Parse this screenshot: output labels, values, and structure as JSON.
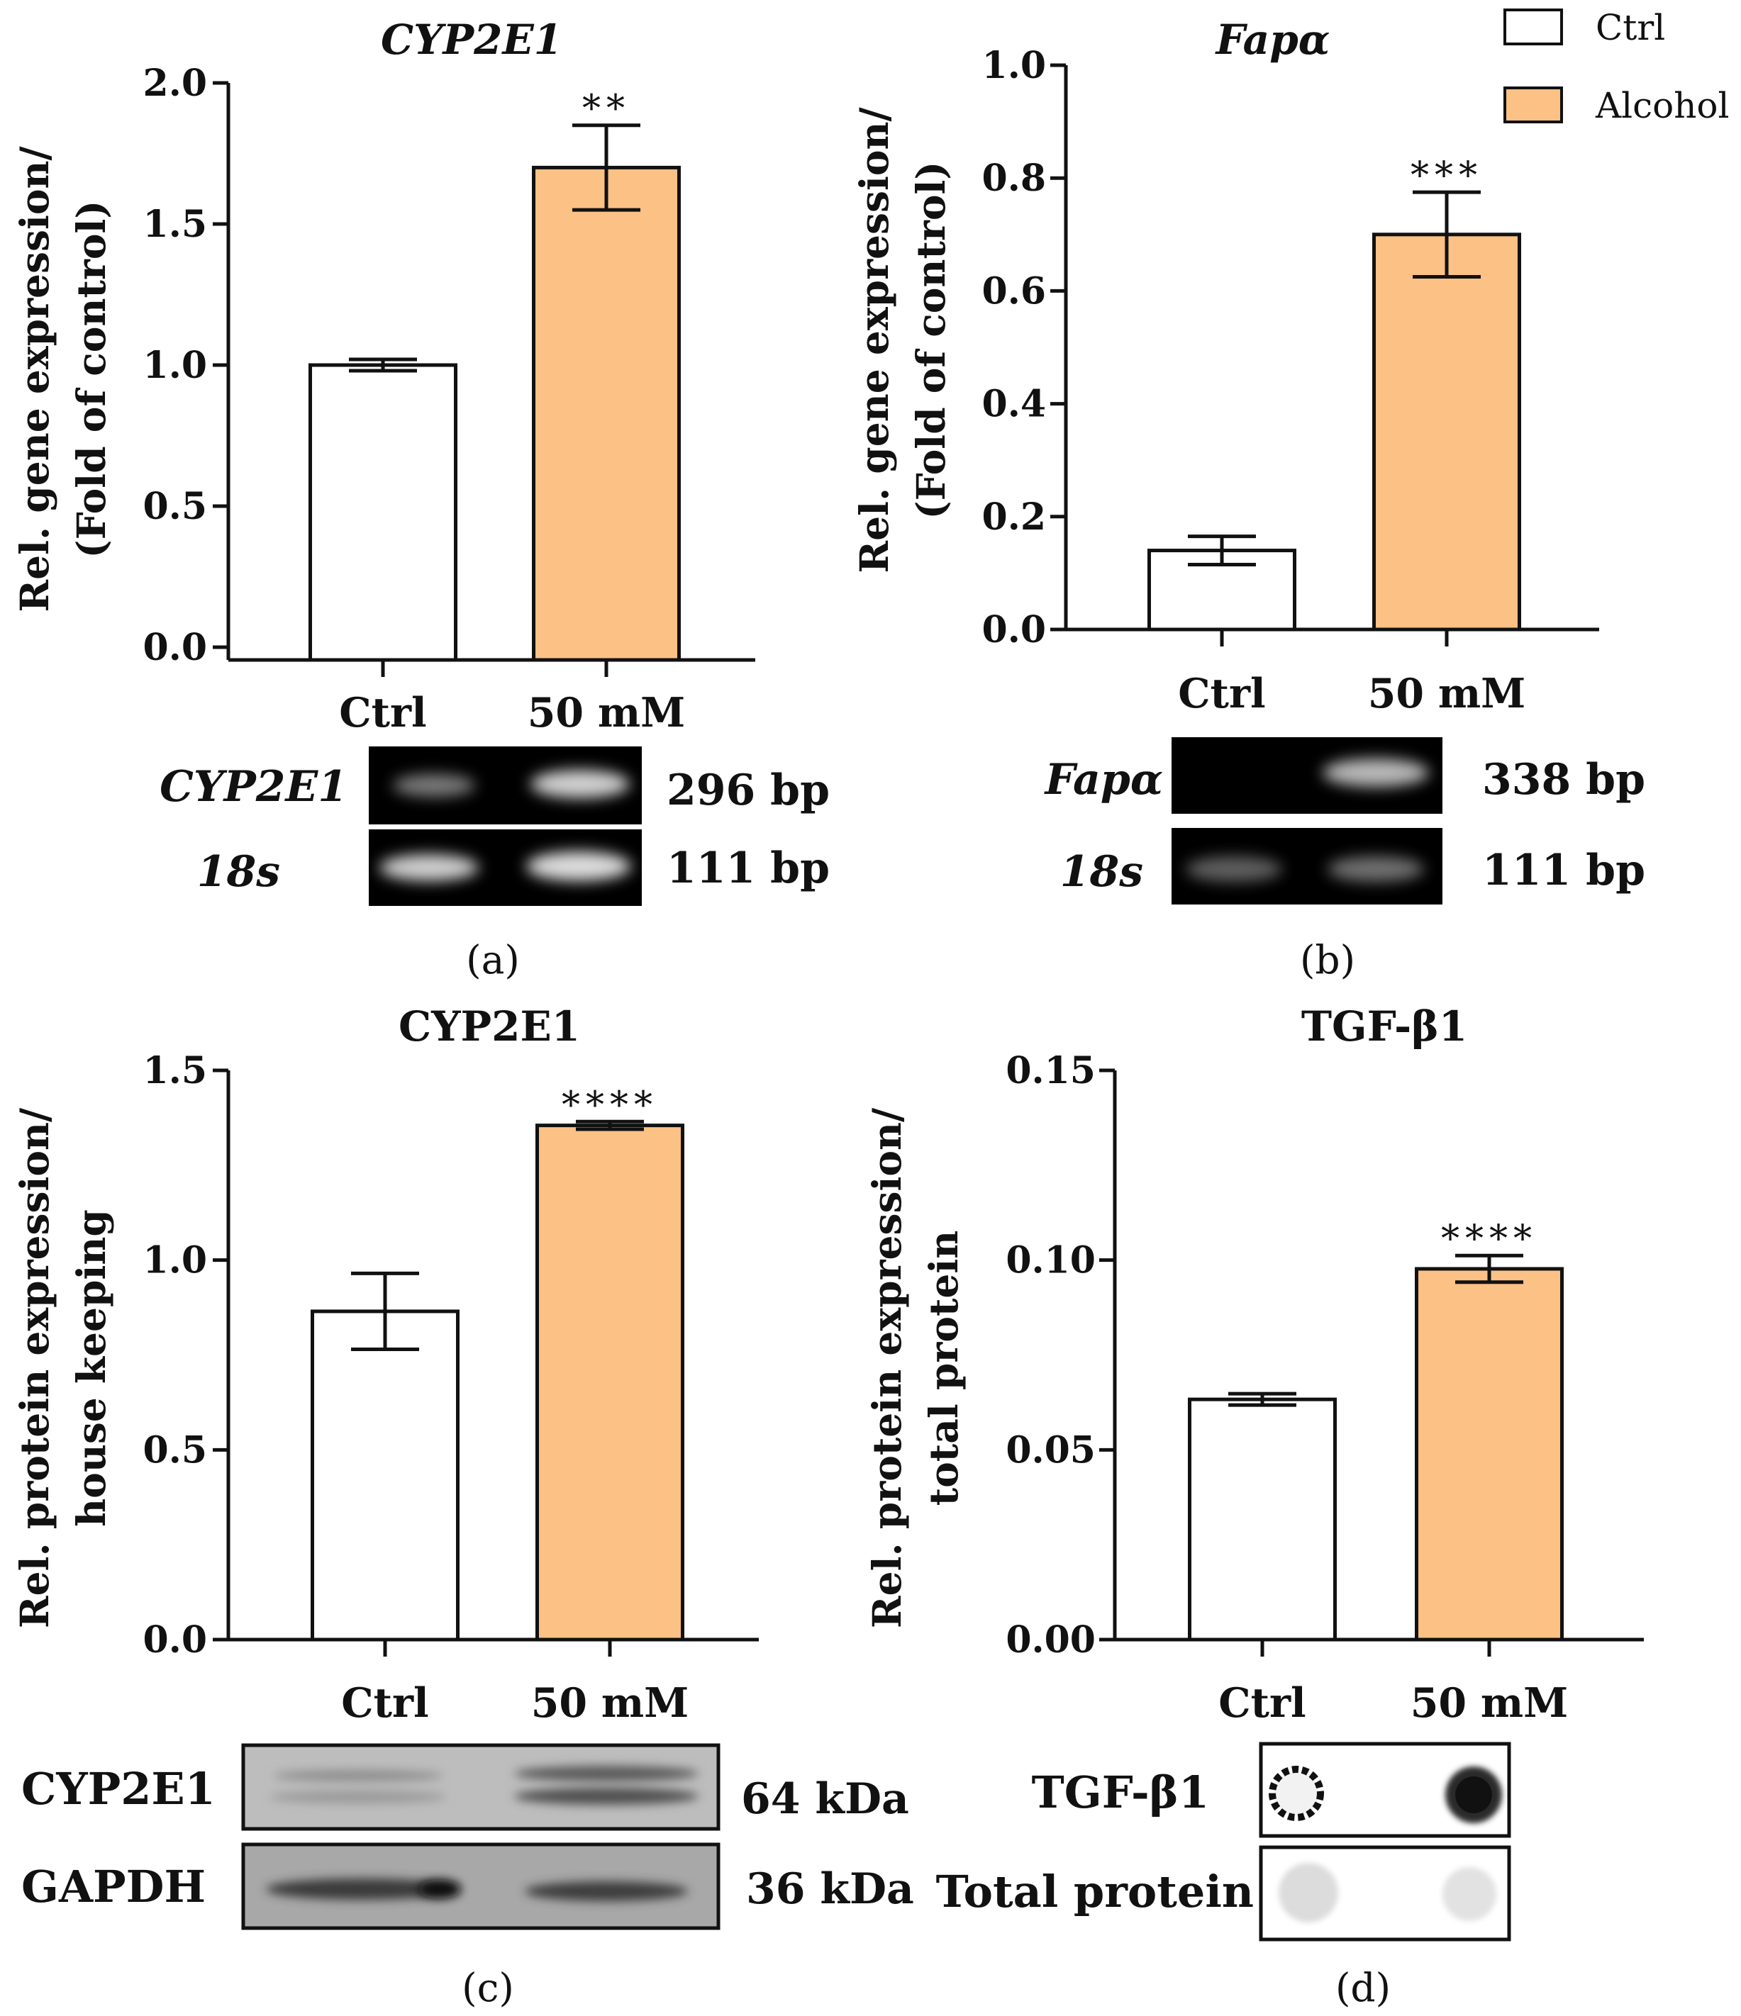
{
  "legend": {
    "items": [
      {
        "label": "Ctrl",
        "color": "#ffffff"
      },
      {
        "label": "Alcohol",
        "color": "#fbc185"
      }
    ]
  },
  "colors": {
    "ctrl": "#ffffff",
    "alcohol": "#fbc185",
    "stroke": "#111111"
  },
  "chart_data": [
    {
      "type": "bar",
      "title": "CYP2E1",
      "ylabel": "Rel. gene expression/ (Fold of control)",
      "categories": [
        "Ctrl",
        "50 mM"
      ],
      "values": [
        1.0,
        1.7
      ],
      "errors": [
        0.02,
        0.15
      ],
      "significance": [
        "",
        "**"
      ],
      "ylim": [
        0,
        2.0
      ],
      "yticks": [
        "0.0",
        "0.5",
        "1.0",
        "1.5",
        "2.0"
      ],
      "panel_label": "(a)",
      "blot": {
        "rows": [
          {
            "name": "CYP2E1",
            "size": "296 bp"
          },
          {
            "name": "18s",
            "size": "111 bp"
          }
        ]
      }
    },
    {
      "type": "bar",
      "title": "Fapα",
      "ylabel": "Rel. gene expression/ (Fold of control)",
      "categories": [
        "Ctrl",
        "50 mM"
      ],
      "values": [
        0.14,
        0.7
      ],
      "errors": [
        0.025,
        0.075
      ],
      "significance": [
        "",
        "***"
      ],
      "ylim": [
        0,
        1.0
      ],
      "yticks": [
        "0.0",
        "0.2",
        "0.4",
        "0.6",
        "0.8",
        "1.0"
      ],
      "panel_label": "(b)",
      "blot": {
        "rows": [
          {
            "name": "Fapα",
            "size": "338 bp"
          },
          {
            "name": "18s",
            "size": "111 bp"
          }
        ]
      }
    },
    {
      "type": "bar",
      "title": "CYP2E1",
      "ylabel": "Rel. protein expression/ house keeping",
      "categories": [
        "Ctrl",
        "50 mM"
      ],
      "values": [
        0.865,
        1.355
      ],
      "errors": [
        0.1,
        0.01
      ],
      "significance": [
        "",
        "****"
      ],
      "ylim": [
        0,
        1.5
      ],
      "yticks": [
        "0.0",
        "0.5",
        "1.0",
        "1.5"
      ],
      "panel_label": "(c)",
      "blot": {
        "rows": [
          {
            "name": "CYP2E1",
            "size": "64 kDa"
          },
          {
            "name": "GAPDH",
            "size": "36 kDa"
          }
        ]
      }
    },
    {
      "type": "bar",
      "title": "TGF-β1",
      "ylabel": "Rel. protein expression/ total protein",
      "categories": [
        "Ctrl",
        "50 mM"
      ],
      "values": [
        0.0633,
        0.0977
      ],
      "errors": [
        0.0015,
        0.0035
      ],
      "significance": [
        "",
        "****"
      ],
      "ylim": [
        0,
        0.15
      ],
      "yticks": [
        "0.00",
        "0.05",
        "0.10",
        "0.15"
      ],
      "panel_label": "(d)",
      "blot": {
        "rows": [
          {
            "name": "TGF-β1",
            "size": ""
          },
          {
            "name": "Total protein",
            "size": ""
          }
        ]
      }
    }
  ]
}
